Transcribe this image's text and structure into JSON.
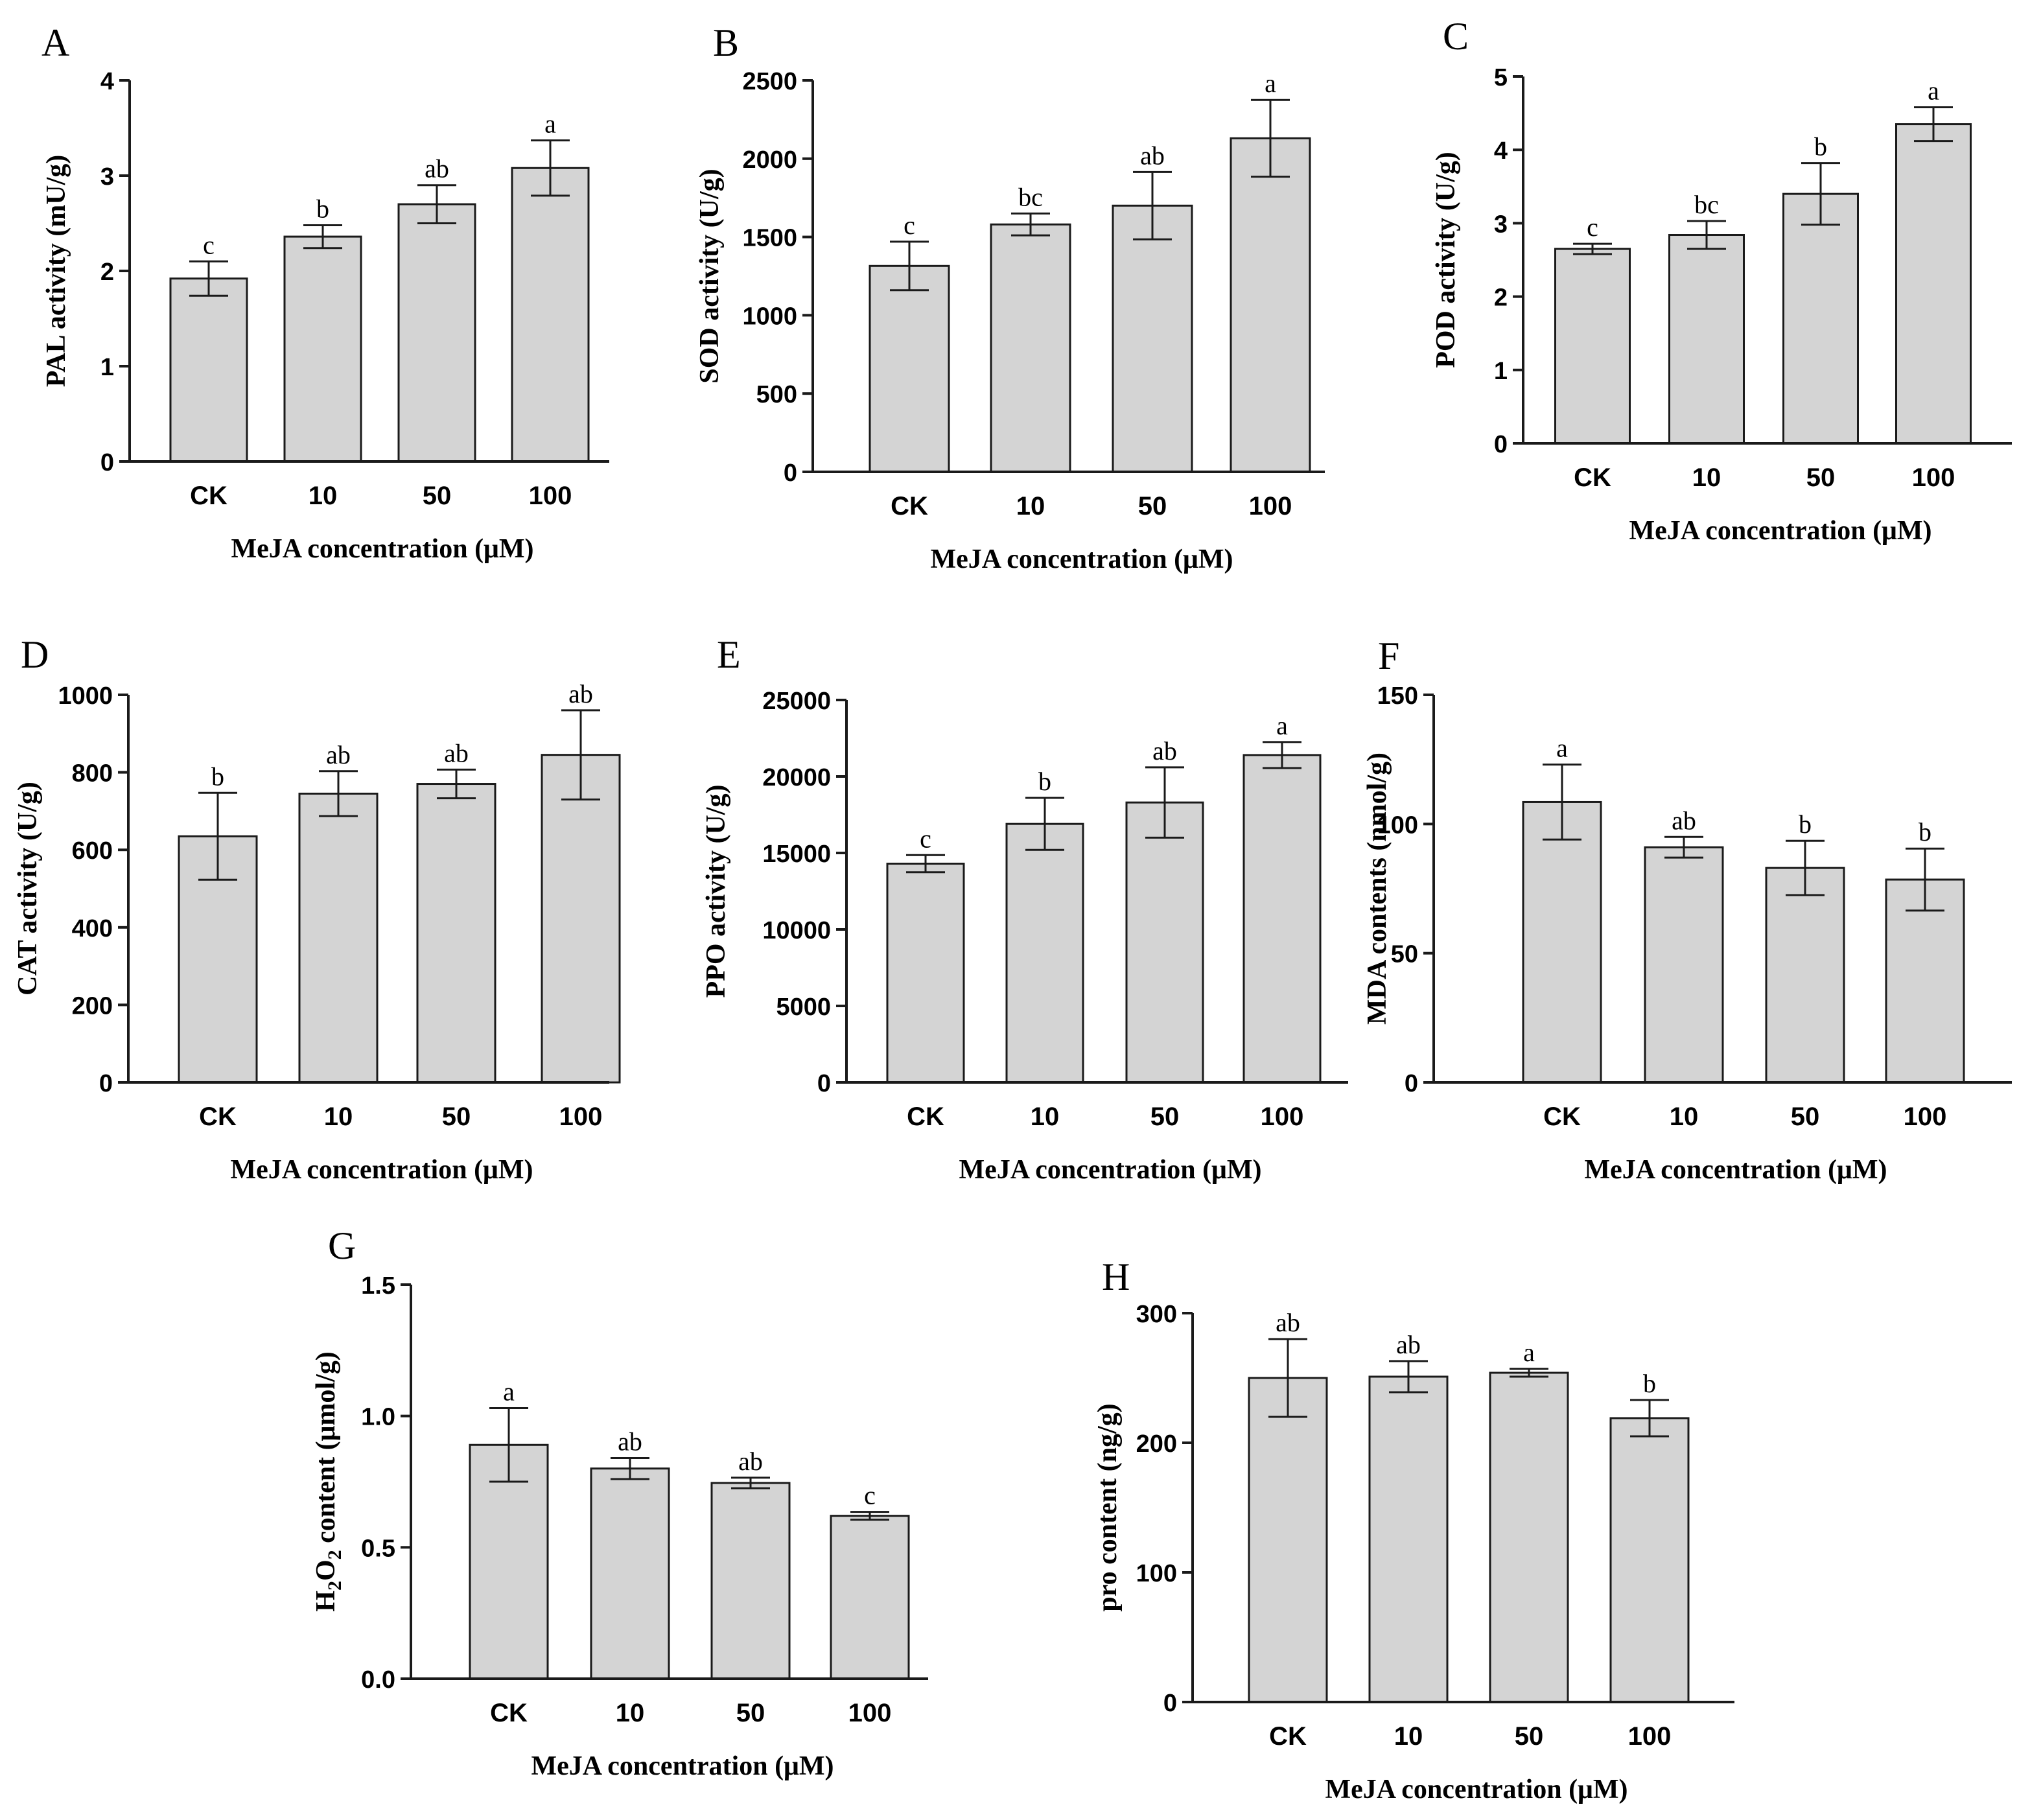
{
  "chart_data": [
    {
      "type": "bar",
      "panel": "A",
      "title": "",
      "xlabel": "MeJA  concentration (μM)",
      "ylabel": "PAL activity (mU/g)",
      "categories": [
        "CK",
        "10",
        "50",
        "100"
      ],
      "values": [
        1.92,
        2.36,
        2.7,
        3.08
      ],
      "errors": [
        0.18,
        0.12,
        0.2,
        0.29
      ],
      "letters": [
        "c",
        "b",
        "ab",
        "a"
      ],
      "ylim": [
        0,
        4
      ],
      "yticks": [
        0,
        1,
        2,
        3,
        4
      ],
      "ytick_labels": [
        "0",
        "1",
        "2",
        "3",
        "4"
      ]
    },
    {
      "type": "bar",
      "panel": "B",
      "title": "",
      "xlabel": "MeJA concentration (μM)",
      "ylabel": "SOD activity (U/g)",
      "categories": [
        "CK",
        "10",
        "50",
        "100"
      ],
      "values": [
        1315,
        1580,
        1700,
        2130
      ],
      "errors": [
        155,
        70,
        215,
        245
      ],
      "letters": [
        "c",
        "bc",
        "ab",
        "a"
      ],
      "ylim": [
        0,
        2500
      ],
      "yticks": [
        0,
        500,
        1000,
        1500,
        2000,
        2500
      ],
      "ytick_labels": [
        "0",
        "500",
        "1000",
        "1500",
        "2000",
        "2500"
      ]
    },
    {
      "type": "bar",
      "panel": "C",
      "title": "",
      "xlabel": "MeJA concentration (μM)",
      "ylabel": "POD activity (U/g)",
      "categories": [
        "CK",
        "10",
        "50",
        "100"
      ],
      "values": [
        2.65,
        2.84,
        3.4,
        4.35
      ],
      "errors": [
        0.07,
        0.19,
        0.42,
        0.23
      ],
      "letters": [
        "c",
        "bc",
        "b",
        "a"
      ],
      "ylim": [
        0,
        5
      ],
      "yticks": [
        0,
        1,
        2,
        3,
        4,
        5
      ],
      "ytick_labels": [
        "0",
        "1",
        "2",
        "3",
        "4",
        "5"
      ]
    },
    {
      "type": "bar",
      "panel": "D",
      "title": "",
      "xlabel": "MeJA concentration (μM)",
      "ylabel": "CAT activity (U/g)",
      "categories": [
        "CK",
        "10",
        "50",
        "100"
      ],
      "values": [
        635,
        745,
        770,
        845
      ],
      "errors": [
        112,
        58,
        37,
        115
      ],
      "letters": [
        "b",
        "ab",
        "ab",
        "ab"
      ],
      "ylim": [
        0,
        1000
      ],
      "yticks": [
        0,
        200,
        400,
        600,
        800,
        1000
      ],
      "ytick_labels": [
        "0",
        "200",
        "400",
        "600",
        "800",
        "1000"
      ]
    },
    {
      "type": "bar",
      "panel": "E",
      "title": "",
      "xlabel": "MeJA  concentration (μM)",
      "ylabel": "PPO activity (U/g)",
      "categories": [
        "CK",
        "10",
        "50",
        "100"
      ],
      "values": [
        14300,
        16900,
        18300,
        21400
      ],
      "errors": [
        560,
        1700,
        2300,
        850
      ],
      "letters": [
        "c",
        "b",
        "ab",
        "a"
      ],
      "ylim": [
        0,
        25000
      ],
      "yticks": [
        0,
        5000,
        10000,
        15000,
        20000,
        25000
      ],
      "ytick_labels": [
        "0",
        "5000",
        "10000",
        "15000",
        "20000",
        "25000"
      ]
    },
    {
      "type": "bar",
      "panel": "F",
      "title": "",
      "xlabel": "MeJA concentration (μM)",
      "ylabel": "MDA contents (nmol/g)",
      "categories": [
        "CK",
        "10",
        "50",
        "100"
      ],
      "values": [
        108.5,
        91,
        83,
        78.5
      ],
      "errors": [
        14.5,
        4,
        10.5,
        12
      ],
      "letters": [
        "a",
        "ab",
        "b",
        "b"
      ],
      "ylim": [
        0,
        150
      ],
      "yticks": [
        0,
        50,
        100,
        150
      ],
      "ytick_labels": [
        "0",
        "50",
        "100",
        "150"
      ]
    },
    {
      "type": "bar",
      "panel": "G",
      "title": "",
      "xlabel": "MeJA concentration (μM)",
      "ylabel": "H2O2 content (μmol/g)",
      "ylabel_parts": [
        "H",
        "2",
        "O",
        "2",
        " content (μmol/g)"
      ],
      "categories": [
        "CK",
        "10",
        "50",
        "100"
      ],
      "values": [
        0.89,
        0.8,
        0.745,
        0.62
      ],
      "errors": [
        0.14,
        0.04,
        0.02,
        0.015
      ],
      "letters": [
        "a",
        "ab",
        "ab",
        "c"
      ],
      "ylim": [
        0,
        1.5
      ],
      "yticks": [
        0,
        0.5,
        1.0,
        1.5
      ],
      "ytick_labels": [
        "0.0",
        "0.5",
        "1.0",
        "1.5"
      ]
    },
    {
      "type": "bar",
      "panel": "H",
      "title": "",
      "xlabel": "MeJA concentration (μM)",
      "ylabel": "pro content (ng/g)",
      "categories": [
        "CK",
        "10",
        "50",
        "100"
      ],
      "values": [
        250,
        251,
        254,
        219
      ],
      "errors": [
        30,
        12,
        3,
        14
      ],
      "letters": [
        "ab",
        "ab",
        "a",
        "b"
      ],
      "ylim": [
        0,
        300
      ],
      "yticks": [
        0,
        100,
        200,
        300
      ],
      "ytick_labels": [
        "0",
        "100",
        "200",
        "300"
      ]
    }
  ],
  "colors": {
    "bar_fill": "#d4d4d4",
    "stroke": "#1a1a1a"
  }
}
